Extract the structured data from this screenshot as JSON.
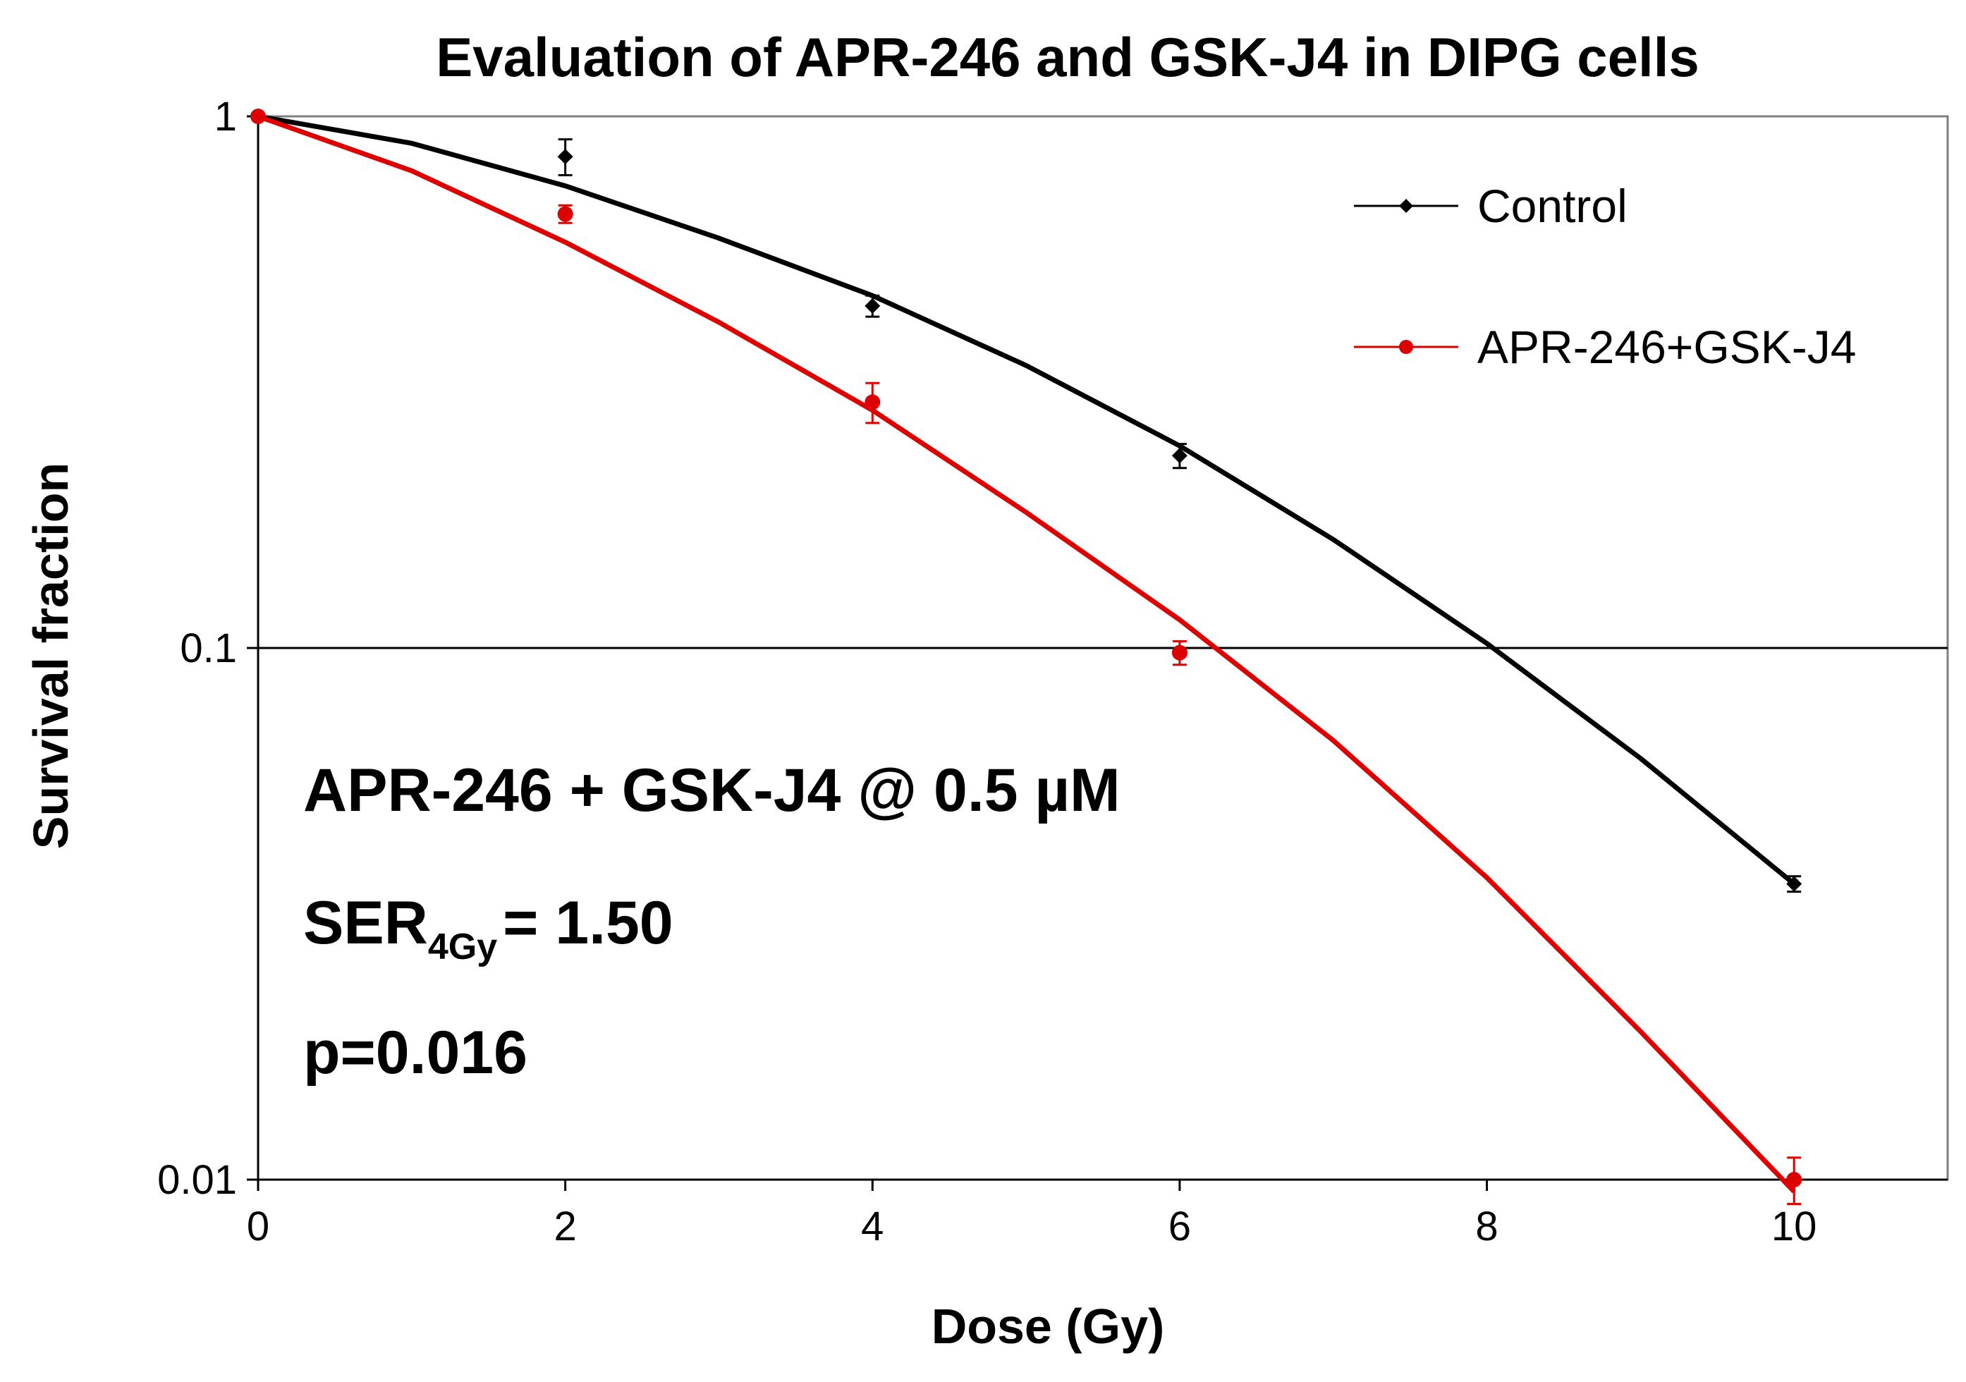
{
  "chart_data": {
    "type": "line",
    "title": "Evaluation of APR-246  and GSK-J4 in DIPG cells",
    "xlabel": "Dose (Gy)",
    "ylabel": "Survival fraction",
    "xlim": [
      0,
      11
    ],
    "ylim": [
      0.01,
      1
    ],
    "yscale": "log",
    "xticks": [
      0,
      2,
      4,
      6,
      8,
      10
    ],
    "xtick_labels": [
      "0",
      "2",
      "4",
      "6",
      "8",
      "10"
    ],
    "yticks": [
      1,
      0.1,
      0.01
    ],
    "ytick_labels": [
      "1",
      "0.1",
      "0.01"
    ],
    "gridlines_y": [
      0.1
    ],
    "legend_position": "top-right",
    "series": [
      {
        "name": "Control",
        "color": "#000000",
        "marker": "diamond",
        "points": {
          "x": [
            0,
            2,
            4,
            6,
            10
          ],
          "y": [
            1.0,
            0.84,
            0.44,
            0.23,
            0.036
          ],
          "err": [
            0.0,
            0.065,
            0.02,
            0.012,
            0.0012
          ]
        },
        "fit": {
          "x": [
            0,
            1,
            2,
            3,
            4,
            5,
            6,
            7,
            8,
            9,
            10
          ],
          "y": [
            1.0,
            0.89,
            0.74,
            0.59,
            0.46,
            0.34,
            0.24,
            0.16,
            0.102,
            0.062,
            0.036
          ]
        }
      },
      {
        "name": "APR-246+GSK-J4",
        "color": "#dd0000",
        "marker": "circle",
        "points": {
          "x": [
            0,
            2,
            4,
            6,
            10
          ],
          "y": [
            1.0,
            0.655,
            0.29,
            0.098,
            0.01
          ],
          "err": [
            0.0,
            0.025,
            0.025,
            0.005,
            0.001
          ]
        },
        "fit": {
          "x": [
            0,
            1,
            2,
            3,
            4,
            5,
            6,
            7,
            8,
            9,
            10
          ],
          "y": [
            1.0,
            0.79,
            0.58,
            0.41,
            0.28,
            0.18,
            0.113,
            0.067,
            0.037,
            0.019,
            0.0095
          ]
        }
      }
    ],
    "annotations": {
      "line1": "APR-246 + GSK-J4 @ 0.5 µM",
      "ser_label": "SER",
      "ser_subscript": "4Gy",
      "ser_value": "= 1.50",
      "p_value": "p=0.016"
    }
  }
}
